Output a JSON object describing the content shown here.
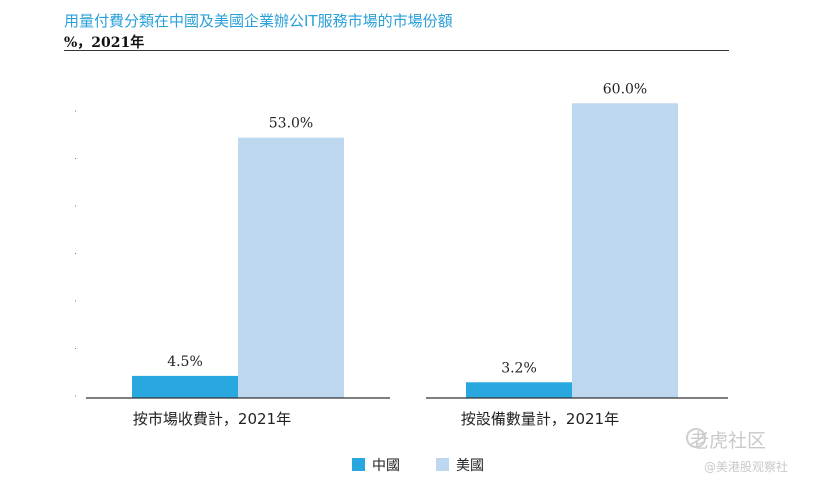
{
  "title": "用量付費分類在中國及美國企業辦公IT服務市場的市場份額",
  "subtitle": "%，2021年",
  "watermark": {
    "main": "老虎社区",
    "sub": "@美港股观察社"
  },
  "colors": {
    "title": "#2aa0d8",
    "china": "#29a8e0",
    "usa": "#bdd7ef",
    "text": "#222222",
    "axis": "#333333"
  },
  "chart_data": [
    {
      "type": "bar",
      "xlabel": "按市場收費計，2021年",
      "unit": "%",
      "ylim": [
        0,
        70
      ],
      "series": [
        {
          "name": "中國",
          "values": [
            4.5
          ]
        },
        {
          "name": "美國",
          "values": [
            53.0
          ]
        }
      ],
      "data_labels": [
        "4.5%",
        "53.0%"
      ]
    },
    {
      "type": "bar",
      "xlabel": "按設備數量計，2021年",
      "unit": "%",
      "ylim": [
        0,
        70
      ],
      "series": [
        {
          "name": "中國",
          "values": [
            3.2
          ]
        },
        {
          "name": "美國",
          "values": [
            60.0
          ]
        }
      ],
      "data_labels": [
        "3.2%",
        "60.0%"
      ]
    }
  ],
  "legend": [
    {
      "name": "中國",
      "color": "#29a8e0"
    },
    {
      "name": "美國",
      "color": "#bdd7ef"
    }
  ]
}
